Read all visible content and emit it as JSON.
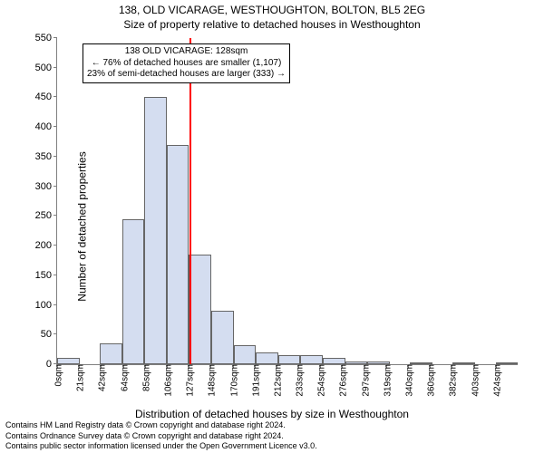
{
  "chart": {
    "type": "histogram",
    "title": "138, OLD VICARAGE, WESTHOUGHTON, BOLTON, BL5 2EG",
    "subtitle": "Size of property relative to detached houses in Westhoughton",
    "ylabel": "Number of detached properties",
    "xlabel": "Distribution of detached houses by size in Westhoughton",
    "ylim": [
      0,
      550
    ],
    "ytick_step": 50,
    "y_ticks": [
      0,
      50,
      100,
      150,
      200,
      250,
      300,
      350,
      400,
      450,
      500,
      550
    ],
    "x_tick_labels": [
      "0sqm",
      "21sqm",
      "42sqm",
      "64sqm",
      "85sqm",
      "106sqm",
      "127sqm",
      "148sqm",
      "170sqm",
      "191sqm",
      "212sqm",
      "233sqm",
      "254sqm",
      "276sqm",
      "297sqm",
      "319sqm",
      "340sqm",
      "360sqm",
      "382sqm",
      "403sqm",
      "424sqm"
    ],
    "values": [
      10,
      0,
      35,
      245,
      450,
      370,
      185,
      90,
      32,
      20,
      15,
      15,
      10,
      5,
      5,
      0,
      3,
      0,
      3,
      0,
      3
    ],
    "bar_fill_color": "#d4ddf0",
    "bar_border_color": "#666666",
    "background_color": "#ffffff",
    "axis_color": "#808080",
    "refline_value": 128,
    "refline_color": "#ff0000",
    "refline_width": 1.5,
    "title_fontsize": 12,
    "subtitle_fontsize": 12,
    "label_fontsize": 12,
    "tick_fontsize": 11,
    "annotation": {
      "line1": "138 OLD VICARAGE: 128sqm",
      "line2": "← 76% of detached houses are smaller (1,107)",
      "line3": "23% of semi-detached houses are larger (333) →",
      "border_color": "#000000",
      "background_color": "#ffffff",
      "fontsize": 10
    }
  },
  "footer": {
    "line1": "Contains HM Land Registry data © Crown copyright and database right 2024.",
    "line2": "Contains Ordnance Survey data © Crown copyright and database right 2024.",
    "line3": "Contains public sector information licensed under the Open Government Licence v3.0."
  }
}
